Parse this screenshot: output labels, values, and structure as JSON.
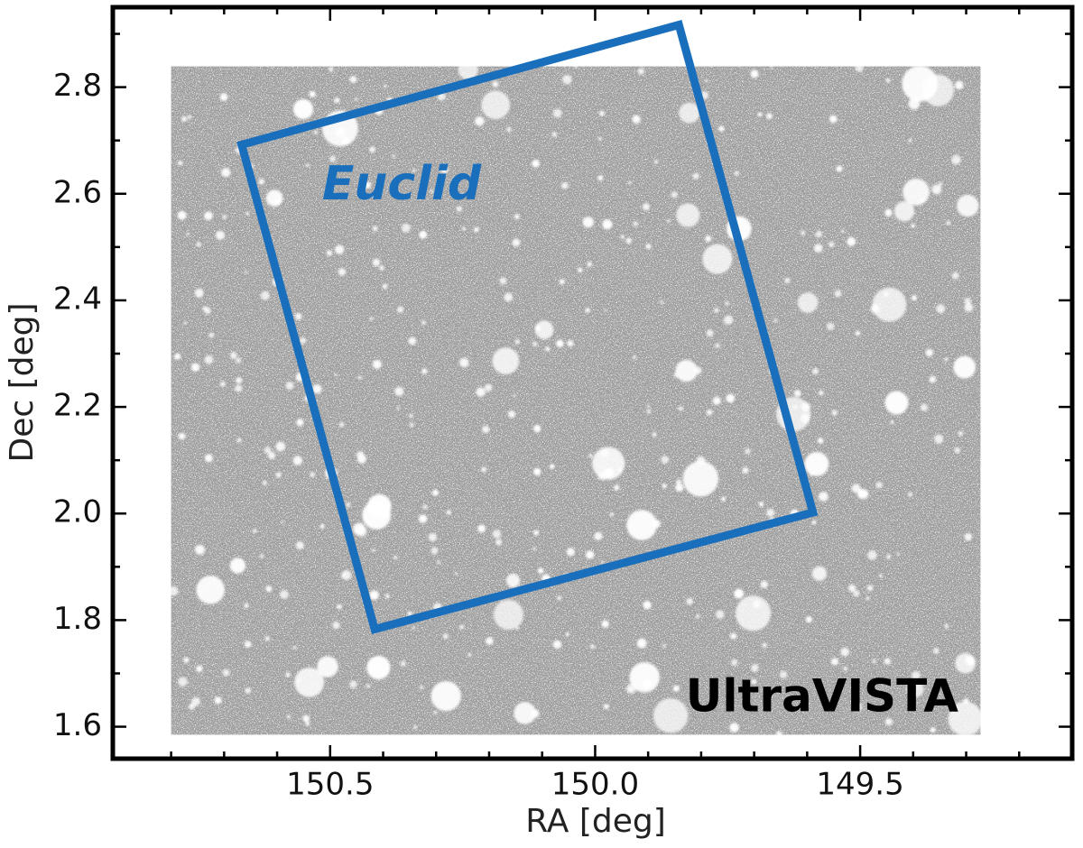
{
  "chart_data": {
    "type": "image",
    "xlabel": "RA [deg]",
    "ylabel": "Dec [deg]",
    "xlim": [
      150.91,
      149.1
    ],
    "ylim": [
      1.54,
      2.95
    ],
    "xticks": [
      150.5,
      {
        "value": 150,
        "label": "150.0"
      },
      149.5
    ],
    "yticks": [
      1.6,
      1.8,
      {
        "value": 2,
        "label": "2.0"
      },
      2.2,
      2.4,
      2.6,
      2.8
    ],
    "xminorticks": [
      150.8,
      150.7,
      150.6,
      150.4,
      150.3,
      150.2,
      150.1,
      149.9,
      149.8,
      149.7,
      149.6,
      149.4,
      149.3,
      149.2
    ],
    "yminorticks": [
      1.7,
      1.9,
      2.1,
      2.3,
      2.5,
      2.7,
      2.9
    ],
    "image_extent": {
      "ra": [
        150.8,
        149.273
      ],
      "dec": [
        1.585,
        2.839
      ]
    },
    "image_label": "UltraVISTA",
    "footprint": {
      "name": "Euclid",
      "color": "#1a6fbd",
      "ra": [
        150.667,
        149.842,
        149.589,
        150.416
      ],
      "dec": [
        2.692,
        2.917,
        2.002,
        1.783
      ]
    }
  }
}
